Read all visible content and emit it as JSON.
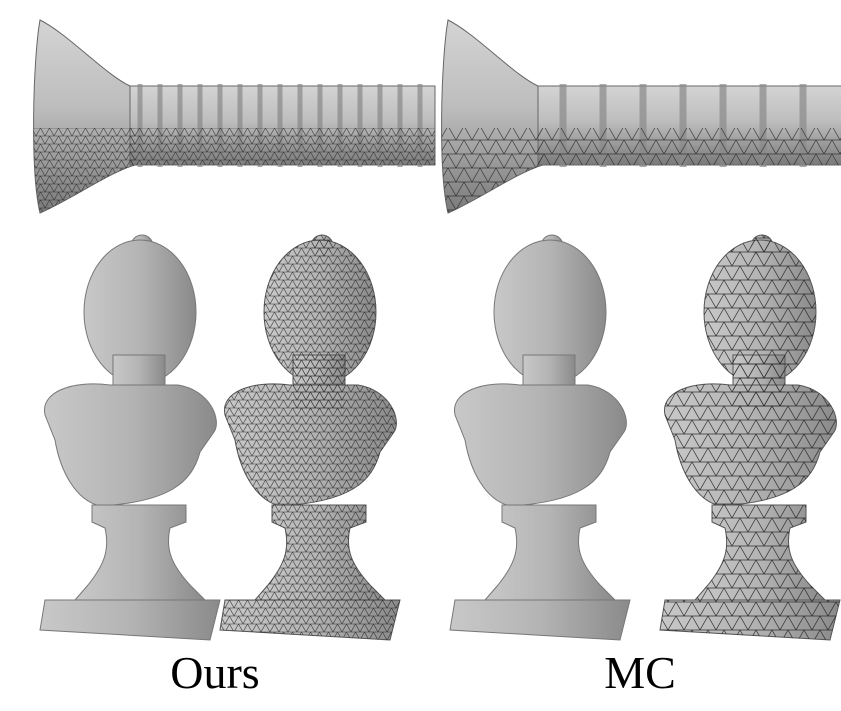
{
  "labels": {
    "left": "Ours",
    "right": "MC"
  }
}
